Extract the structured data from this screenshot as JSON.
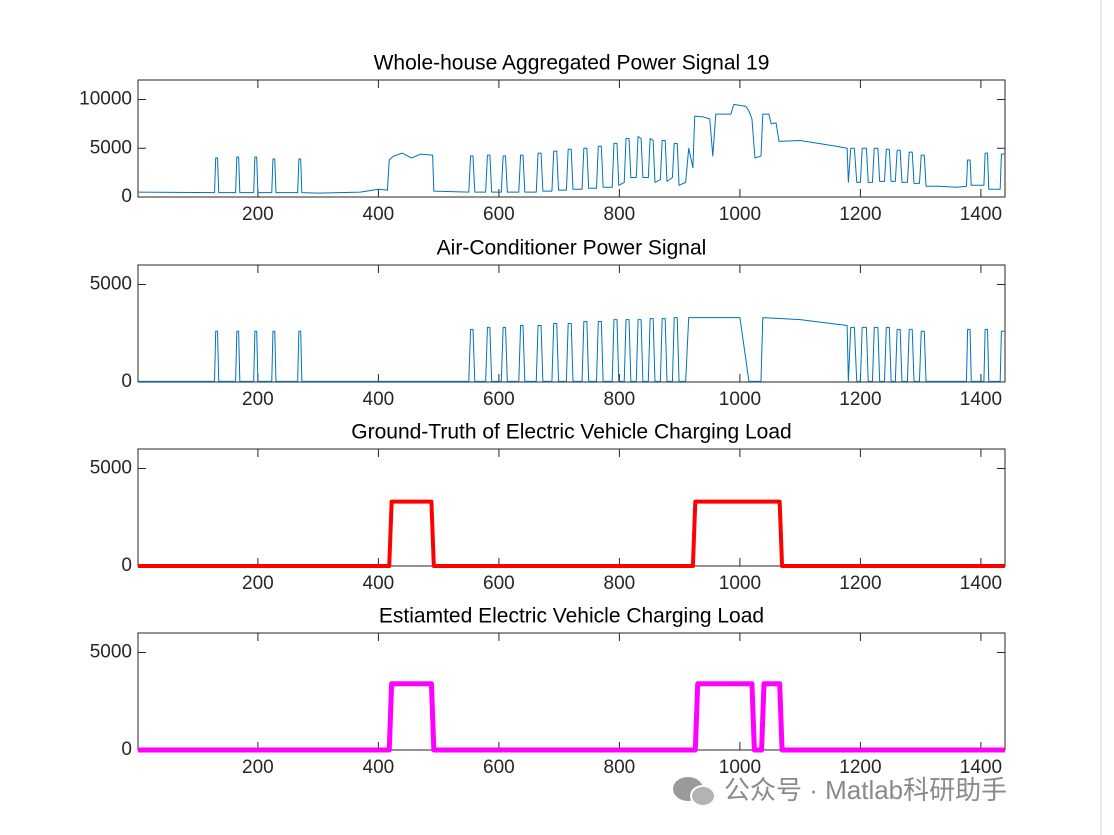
{
  "chart_data": [
    {
      "type": "line",
      "title": "Whole-house Aggregated Power Signal 19",
      "color": "#0072bd",
      "line_width": 1,
      "xlim": [
        1,
        1440
      ],
      "xticks": [
        200,
        400,
        600,
        800,
        1000,
        1200,
        1400
      ],
      "ylim": [
        0,
        12000
      ],
      "yticks": [
        0,
        5000,
        10000
      ],
      "x": [
        1,
        128,
        130,
        133,
        135,
        163,
        165,
        168,
        170,
        193,
        195,
        198,
        200,
        223,
        225,
        228,
        230,
        266,
        268,
        271,
        273,
        300,
        370,
        400,
        415,
        418,
        425,
        440,
        455,
        470,
        490,
        492,
        550,
        553,
        557,
        560,
        578,
        581,
        585,
        588,
        604,
        607,
        611,
        614,
        633,
        636,
        640,
        643,
        662,
        665,
        670,
        673,
        688,
        691,
        696,
        699,
        712,
        715,
        720,
        723,
        738,
        741,
        746,
        749,
        762,
        765,
        770,
        773,
        788,
        791,
        796,
        799,
        808,
        811,
        816,
        819,
        828,
        831,
        836,
        839,
        848,
        851,
        856,
        859,
        868,
        871,
        876,
        879,
        888,
        891,
        896,
        899,
        910,
        915,
        922,
        925,
        940,
        950,
        955,
        960,
        985,
        990,
        1000,
        1010,
        1015,
        1020,
        1025,
        1035,
        1038,
        1048,
        1052,
        1060,
        1065,
        1100,
        1130,
        1160,
        1178,
        1180,
        1184,
        1190,
        1194,
        1200,
        1203,
        1210,
        1213,
        1220,
        1223,
        1229,
        1232,
        1240,
        1243,
        1248,
        1251,
        1258,
        1261,
        1266,
        1269,
        1278,
        1281,
        1286,
        1289,
        1298,
        1301,
        1306,
        1309,
        1330,
        1360,
        1376,
        1378,
        1382,
        1384,
        1405,
        1407,
        1411,
        1413,
        1432,
        1434,
        1440
      ],
      "values": [
        500,
        450,
        4000,
        4000,
        450,
        450,
        4100,
        4100,
        450,
        450,
        4100,
        4100,
        450,
        450,
        3900,
        3900,
        450,
        450,
        3900,
        3900,
        450,
        400,
        500,
        800,
        700,
        3800,
        4200,
        4500,
        4000,
        4400,
        4300,
        600,
        500,
        4200,
        4200,
        500,
        500,
        4300,
        4300,
        500,
        500,
        4200,
        4200,
        500,
        500,
        4300,
        4300,
        500,
        500,
        4500,
        4500,
        600,
        600,
        4700,
        4700,
        700,
        700,
        4900,
        4900,
        800,
        800,
        5000,
        5000,
        900,
        900,
        5200,
        5200,
        1000,
        1000,
        5500,
        5500,
        1200,
        1500,
        6000,
        6000,
        2000,
        2000,
        6200,
        6000,
        2000,
        2000,
        6000,
        5800,
        1500,
        1800,
        5800,
        5800,
        1600,
        2000,
        5500,
        5500,
        1200,
        1500,
        5000,
        3000,
        8300,
        8200,
        8000,
        4200,
        8500,
        8500,
        9500,
        9400,
        9300,
        8800,
        8000,
        4000,
        4200,
        8500,
        8500,
        7500,
        7600,
        5700,
        5800,
        5500,
        5200,
        5000,
        1500,
        5000,
        5000,
        1500,
        1500,
        5000,
        5000,
        1500,
        1500,
        5000,
        5000,
        1600,
        1600,
        4900,
        4900,
        1600,
        1600,
        4800,
        4800,
        1500,
        1500,
        4600,
        4600,
        1400,
        1400,
        4300,
        4300,
        1100,
        1100,
        1000,
        1100,
        3800,
        3800,
        1200,
        1200,
        4500,
        4500,
        800,
        800,
        4400,
        4400
      ]
    },
    {
      "type": "line",
      "title": "Air-Conditioner Power Signal",
      "color": "#0072bd",
      "line_width": 1,
      "xlim": [
        1,
        1440
      ],
      "xticks": [
        200,
        400,
        600,
        800,
        1000,
        1200,
        1400
      ],
      "ylim": [
        0,
        6000
      ],
      "yticks": [
        0,
        5000
      ],
      "x": [
        1,
        128,
        130,
        133,
        135,
        163,
        165,
        168,
        170,
        193,
        195,
        198,
        200,
        223,
        225,
        228,
        230,
        266,
        268,
        271,
        273,
        550,
        553,
        557,
        560,
        578,
        581,
        585,
        588,
        604,
        607,
        611,
        614,
        633,
        636,
        640,
        643,
        662,
        665,
        670,
        673,
        688,
        691,
        696,
        699,
        712,
        715,
        720,
        723,
        738,
        741,
        746,
        749,
        762,
        765,
        770,
        773,
        788,
        791,
        796,
        799,
        808,
        811,
        816,
        819,
        828,
        831,
        836,
        839,
        848,
        851,
        856,
        859,
        868,
        871,
        876,
        879,
        888,
        891,
        896,
        899,
        910,
        915,
        960,
        1000,
        1015,
        1035,
        1038,
        1100,
        1178,
        1180,
        1184,
        1190,
        1194,
        1200,
        1203,
        1210,
        1213,
        1220,
        1223,
        1229,
        1232,
        1240,
        1243,
        1248,
        1251,
        1258,
        1261,
        1266,
        1269,
        1278,
        1281,
        1286,
        1289,
        1298,
        1301,
        1306,
        1309,
        1376,
        1378,
        1382,
        1384,
        1405,
        1407,
        1411,
        1413,
        1432,
        1434,
        1440
      ],
      "values": [
        30,
        30,
        2600,
        2600,
        30,
        30,
        2600,
        2600,
        30,
        30,
        2600,
        2600,
        30,
        30,
        2600,
        2600,
        30,
        30,
        2600,
        2600,
        30,
        30,
        2700,
        2700,
        30,
        30,
        2800,
        2800,
        30,
        30,
        2800,
        2800,
        30,
        30,
        2900,
        2900,
        30,
        30,
        2900,
        2900,
        30,
        30,
        3000,
        3000,
        30,
        30,
        3000,
        3000,
        30,
        30,
        3100,
        3100,
        30,
        30,
        3100,
        3100,
        30,
        30,
        3200,
        3200,
        30,
        30,
        3200,
        3200,
        30,
        30,
        3200,
        3200,
        30,
        30,
        3250,
        3250,
        30,
        30,
        3250,
        3250,
        30,
        30,
        3300,
        3300,
        30,
        30,
        3300,
        3300,
        3300,
        30,
        30,
        3300,
        3200,
        2900,
        30,
        2800,
        2800,
        30,
        30,
        2800,
        2800,
        30,
        30,
        2800,
        2800,
        30,
        30,
        2800,
        2800,
        30,
        30,
        2700,
        2700,
        30,
        30,
        2700,
        2700,
        30,
        30,
        2600,
        2600,
        30,
        30,
        2700,
        2700,
        30,
        30,
        2700,
        2700,
        30,
        30,
        2600,
        2600
      ]
    },
    {
      "type": "line",
      "title": "Ground-Truth of Electric Vehicle Charging Load",
      "color": "#ff0000",
      "line_width": 4,
      "xlim": [
        1,
        1440
      ],
      "xticks": [
        200,
        400,
        600,
        800,
        1000,
        1200,
        1400
      ],
      "ylim": [
        0,
        6000
      ],
      "yticks": [
        0,
        5000
      ],
      "x": [
        1,
        418,
        422,
        488,
        492,
        922,
        926,
        1066,
        1070,
        1440
      ],
      "values": [
        0,
        0,
        3300,
        3300,
        0,
        0,
        3300,
        3300,
        0,
        0
      ]
    },
    {
      "type": "line",
      "title": "Estiamted Electric Vehicle Charging Load",
      "color": "#ff00ff",
      "line_width": 5,
      "xlim": [
        1,
        1440
      ],
      "xticks": [
        200,
        400,
        600,
        800,
        1000,
        1200,
        1400
      ],
      "ylim": [
        0,
        6000
      ],
      "yticks": [
        0,
        5000
      ],
      "x": [
        1,
        418,
        422,
        488,
        492,
        926,
        930,
        1020,
        1024,
        1036,
        1040,
        1066,
        1070,
        1440
      ],
      "values": [
        0,
        0,
        3400,
        3400,
        0,
        0,
        3400,
        3400,
        0,
        0,
        3400,
        3400,
        0,
        0
      ]
    }
  ],
  "watermark": "公众号 · Matlab科研助手"
}
